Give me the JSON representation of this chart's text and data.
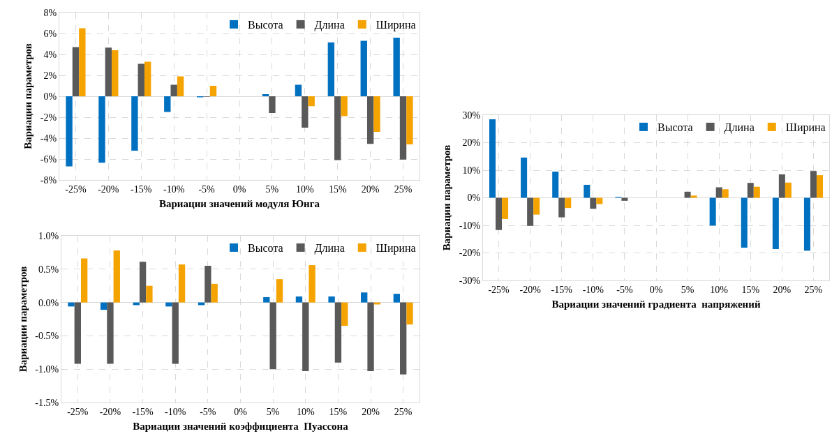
{
  "chart_data": [
    {
      "type": "bar",
      "xlabel": "Вариации значений модуля Юнга",
      "ylabel": "Вариации параметров",
      "categories": [
        "-25%",
        "-20%",
        "-15%",
        "-10%",
        "-5%",
        "0%",
        "5%",
        "10%",
        "15%",
        "20%",
        "25%"
      ],
      "series": [
        {
          "name": "Высота",
          "color": "#0070c0",
          "values": [
            -6.7,
            -6.35,
            -5.2,
            -1.5,
            -0.1,
            0,
            0.2,
            1.1,
            5.15,
            5.3,
            5.6
          ]
        },
        {
          "name": "Длина",
          "color": "#595959",
          "values": [
            4.7,
            4.65,
            3.1,
            1.1,
            -0.05,
            0,
            -1.6,
            -3.0,
            -6.1,
            -4.55,
            -6.05
          ]
        },
        {
          "name": "Ширина",
          "color": "#f5a300",
          "values": [
            6.5,
            4.4,
            3.3,
            1.9,
            1.0,
            0,
            0,
            -0.95,
            -1.9,
            -3.4,
            -4.6
          ]
        }
      ],
      "ylim": [
        -8,
        8
      ],
      "yticks": [
        {
          "value": -8,
          "label": "-8%"
        },
        {
          "value": -6,
          "label": "-6%"
        },
        {
          "value": -4,
          "label": "-4%"
        },
        {
          "value": -2,
          "label": "-2%"
        },
        {
          "value": 0,
          "label": "0%"
        },
        {
          "value": 2,
          "label": "2%"
        },
        {
          "value": 4,
          "label": "4%"
        },
        {
          "value": 6,
          "label": "6%"
        },
        {
          "value": 8,
          "label": "8%"
        }
      ],
      "grid": true,
      "legend": "top right"
    },
    {
      "type": "bar",
      "xlabel": "Вариации значений коэффициента  Пуассона",
      "ylabel": "Вариации параметров",
      "categories": [
        "-25%",
        "-20%",
        "-15%",
        "-10%",
        "-5%",
        "0%",
        "5%",
        "10%",
        "15%",
        "20%",
        "25%"
      ],
      "series": [
        {
          "name": "Высота",
          "color": "#0070c0",
          "values": [
            -0.06,
            -0.11,
            -0.04,
            -0.06,
            -0.04,
            0,
            0.08,
            0.09,
            0.09,
            0.15,
            0.13
          ]
        },
        {
          "name": "Длина",
          "color": "#595959",
          "values": [
            -0.92,
            -0.92,
            0.61,
            -0.92,
            0.55,
            0,
            -1.0,
            -1.03,
            -0.9,
            -1.03,
            -1.08
          ]
        },
        {
          "name": "Ширина",
          "color": "#f5a300",
          "values": [
            0.66,
            0.78,
            0.25,
            0.57,
            0.28,
            0,
            0.35,
            0.56,
            -0.35,
            -0.03,
            -0.33
          ]
        }
      ],
      "ylim": [
        -1.5,
        1.0
      ],
      "yticks": [
        {
          "value": -1.5,
          "label": "-1.5%"
        },
        {
          "value": -1.0,
          "label": "-1.0%"
        },
        {
          "value": -0.5,
          "label": "-0.5%"
        },
        {
          "value": 0,
          "label": "0.0%"
        },
        {
          "value": 0.5,
          "label": "0.5%"
        },
        {
          "value": 1.0,
          "label": "1.0%"
        }
      ],
      "grid": true,
      "legend": "top right"
    },
    {
      "type": "bar",
      "xlabel": "Вариации значений градиента  напряжений",
      "ylabel": "Вариации параметров",
      "categories": [
        "-25%",
        "-20%",
        "-15%",
        "-10%",
        "-5%",
        "0%",
        "5%",
        "10%",
        "15%",
        "20%",
        "25%"
      ],
      "series": [
        {
          "name": "Высота",
          "color": "#0070c0",
          "values": [
            28.5,
            14.6,
            9.5,
            4.7,
            0.3,
            0,
            null,
            -10.1,
            -18.1,
            -18.6,
            -19.2
          ]
        },
        {
          "name": "Длина",
          "color": "#595959",
          "values": [
            -11.7,
            -10.2,
            -7.1,
            -4.0,
            -1.1,
            0,
            2.2,
            3.8,
            5.4,
            8.5,
            9.7
          ]
        },
        {
          "name": "Ширина",
          "color": "#f5a300",
          "values": [
            -7.7,
            -6.1,
            -3.7,
            -2.3,
            null,
            0,
            0.8,
            3.1,
            4.0,
            5.5,
            8.2
          ]
        }
      ],
      "ylim": [
        -30,
        30
      ],
      "yticks": [
        {
          "value": -30,
          "label": "-30%"
        },
        {
          "value": -20,
          "label": "-20%"
        },
        {
          "value": -10,
          "label": "-10%"
        },
        {
          "value": 0,
          "label": "0%"
        },
        {
          "value": 10,
          "label": "10%"
        },
        {
          "value": 20,
          "label": "20%"
        },
        {
          "value": 30,
          "label": "30%"
        }
      ],
      "grid": true,
      "legend": "top right"
    }
  ]
}
